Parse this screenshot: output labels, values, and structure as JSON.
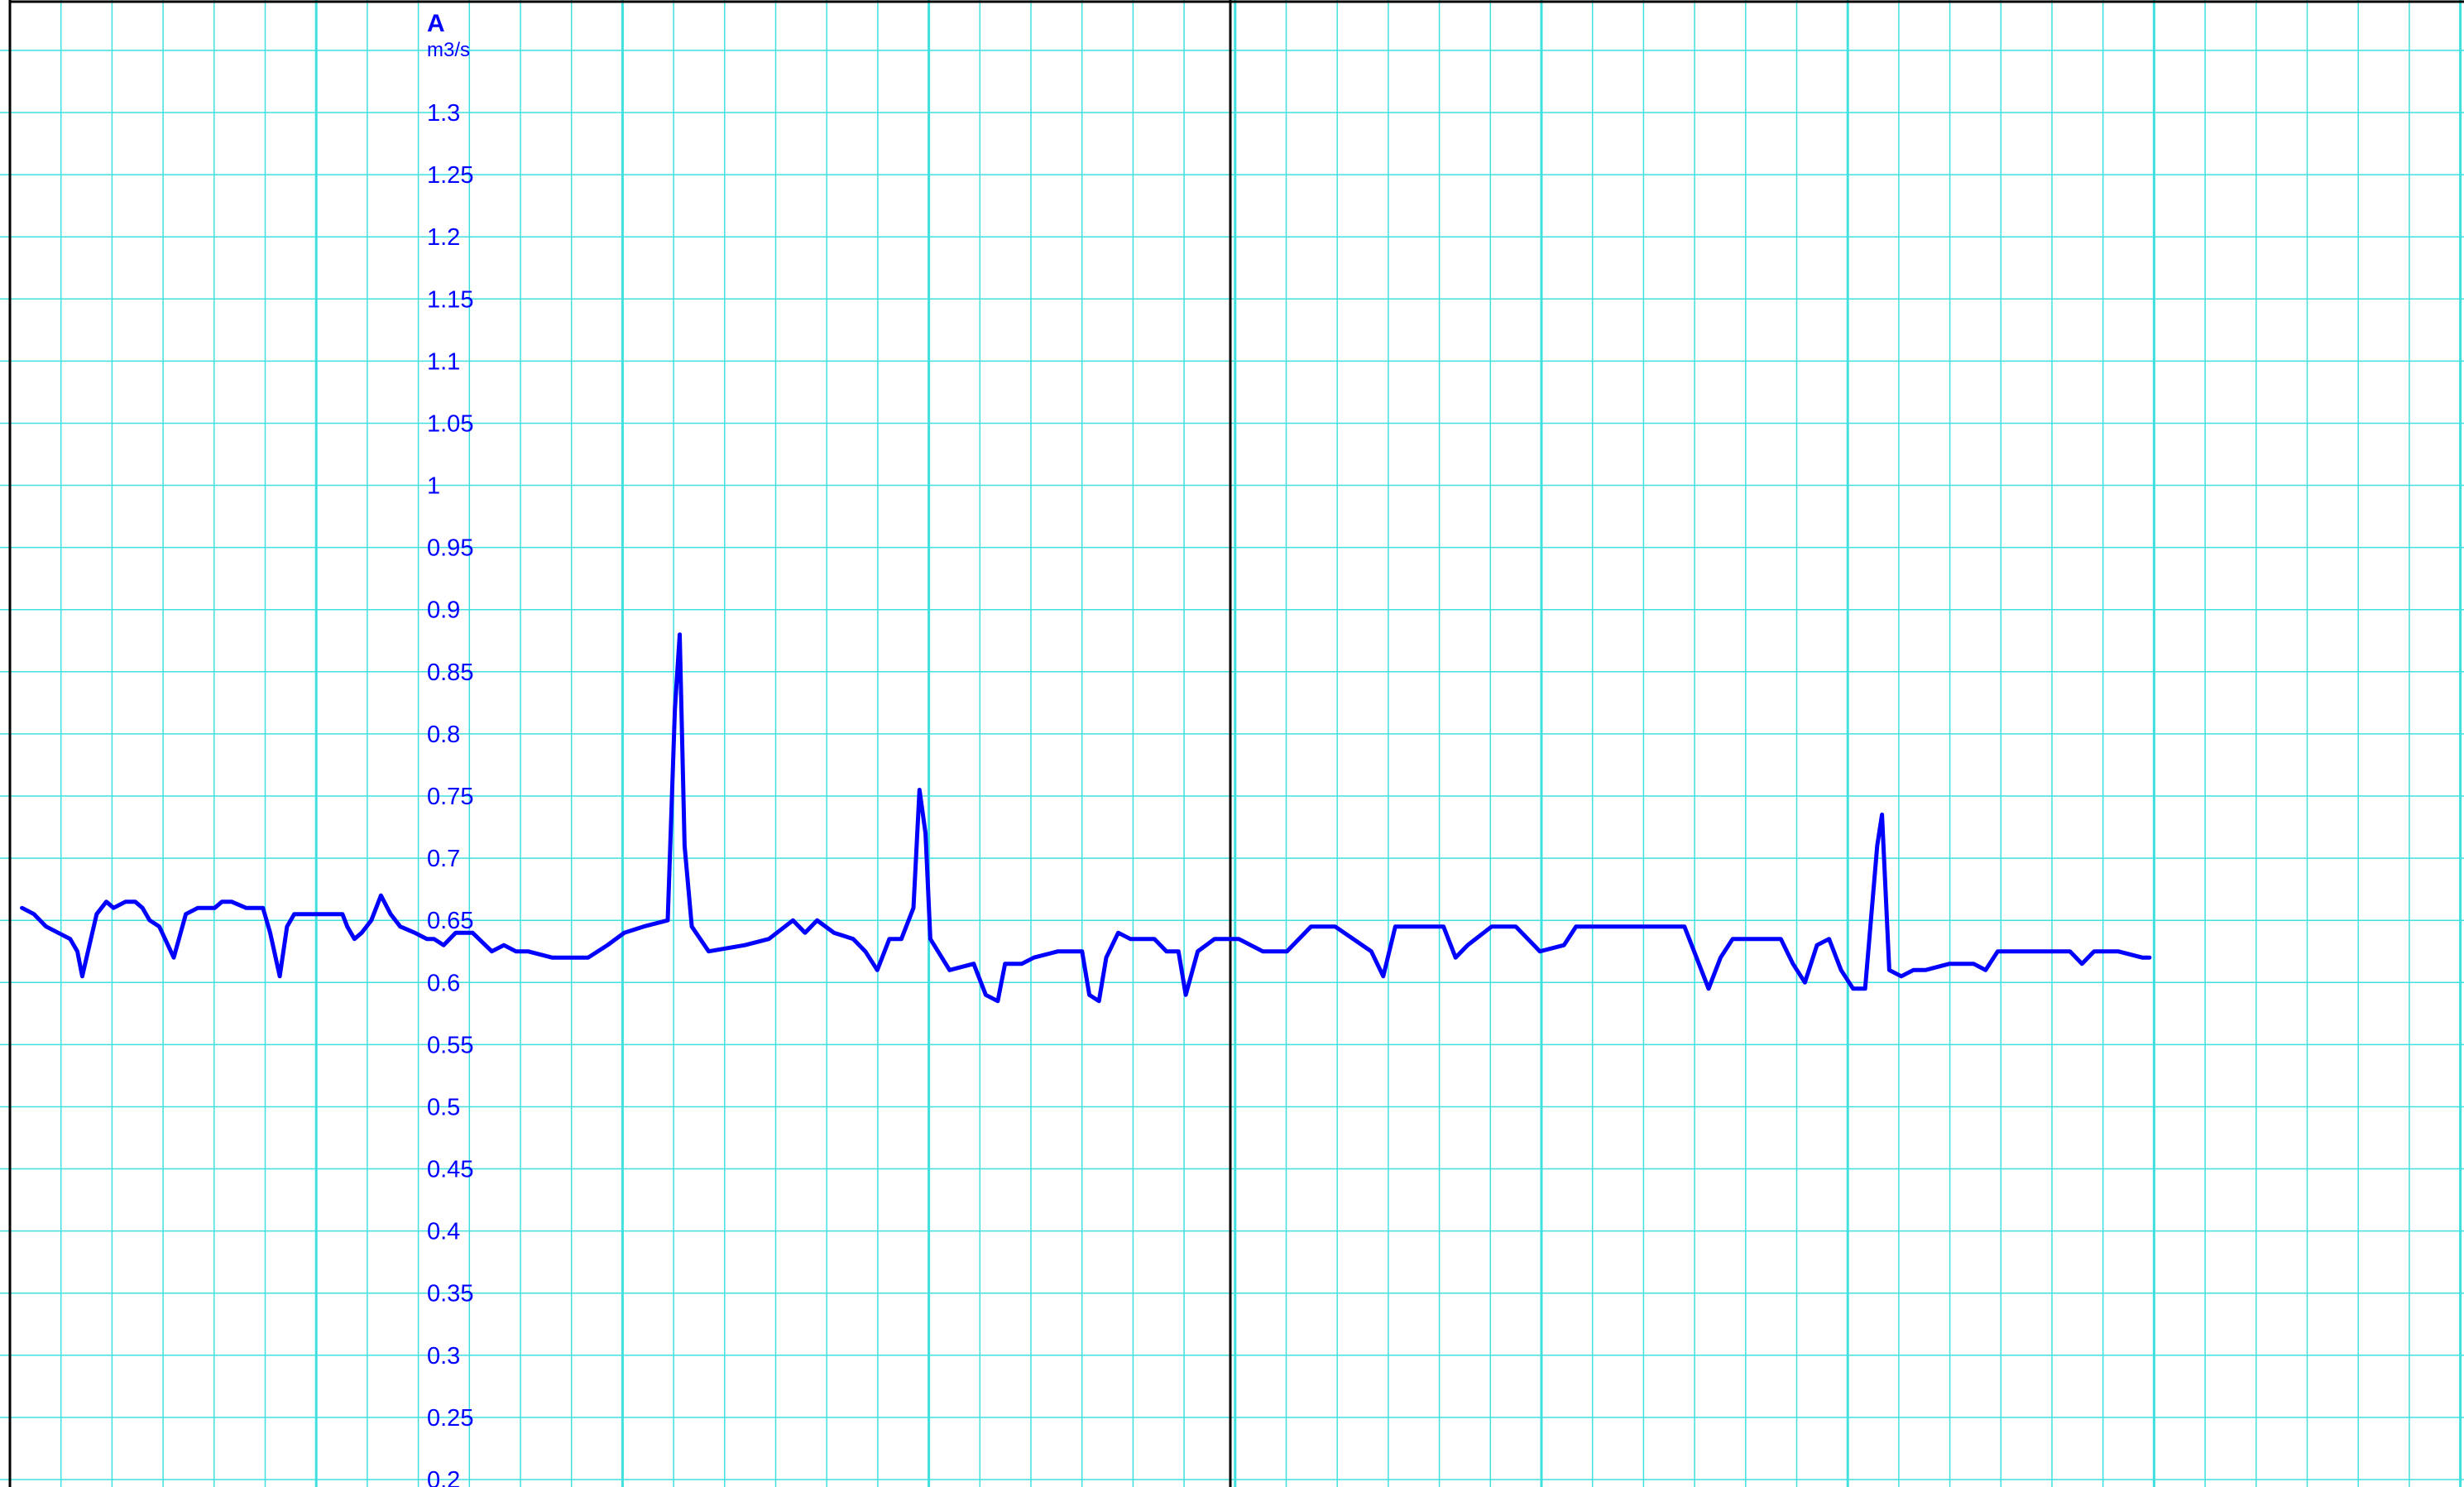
{
  "chart_data": {
    "type": "line",
    "title": "",
    "xlabel": "",
    "ylabel": "A",
    "yunit": "m3/s",
    "ylim": [
      0.2,
      1.35
    ],
    "yticks": [
      1.3,
      1.25,
      1.2,
      1.15,
      1.1,
      1.05,
      1,
      0.95,
      0.9,
      0.85,
      0.8,
      0.75,
      0.7,
      0.65,
      0.6,
      0.55,
      0.5,
      0.45,
      0.4,
      0.35,
      0.3,
      0.25,
      0.2
    ],
    "ytick_labels": [
      "1.3",
      "1.25",
      "1.2",
      "1.15",
      "1.1",
      "1.05",
      "1",
      "0.95",
      "0.9",
      "0.85",
      "0.8",
      "0.75",
      "0.7",
      "0.65",
      "0.6",
      "0.55",
      "0.5",
      "0.45",
      "0.4",
      "0.35",
      "0.3",
      "0.25",
      "0.2"
    ],
    "xlim": [
      0,
      100
    ],
    "grid": true,
    "colors": {
      "line": "#0000ff",
      "grid": "#40e0e0",
      "frame": "#000000",
      "labels": "#0000ff"
    },
    "series": [
      {
        "values": [
          [
            0.5,
            0.66
          ],
          [
            1.0,
            0.655
          ],
          [
            1.5,
            0.645
          ],
          [
            2.0,
            0.64
          ],
          [
            2.5,
            0.635
          ],
          [
            2.8,
            0.625
          ],
          [
            3.0,
            0.605
          ],
          [
            3.3,
            0.63
          ],
          [
            3.6,
            0.655
          ],
          [
            4.0,
            0.665
          ],
          [
            4.3,
            0.66
          ],
          [
            4.8,
            0.665
          ],
          [
            5.2,
            0.665
          ],
          [
            5.5,
            0.66
          ],
          [
            5.8,
            0.65
          ],
          [
            6.2,
            0.645
          ],
          [
            6.8,
            0.62
          ],
          [
            7.3,
            0.655
          ],
          [
            7.8,
            0.66
          ],
          [
            8.5,
            0.66
          ],
          [
            8.8,
            0.665
          ],
          [
            9.2,
            0.665
          ],
          [
            9.8,
            0.66
          ],
          [
            10.5,
            0.66
          ],
          [
            10.8,
            0.64
          ],
          [
            11.2,
            0.605
          ],
          [
            11.5,
            0.645
          ],
          [
            11.8,
            0.655
          ],
          [
            12.5,
            0.655
          ],
          [
            13.3,
            0.655
          ],
          [
            13.8,
            0.655
          ],
          [
            14.0,
            0.645
          ],
          [
            14.3,
            0.635
          ],
          [
            14.6,
            0.64
          ],
          [
            15.0,
            0.65
          ],
          [
            15.4,
            0.67
          ],
          [
            15.8,
            0.655
          ],
          [
            16.2,
            0.645
          ],
          [
            16.8,
            0.64
          ],
          [
            17.3,
            0.635
          ],
          [
            17.6,
            0.635
          ],
          [
            18.0,
            0.63
          ],
          [
            18.5,
            0.64
          ],
          [
            19.2,
            0.64
          ],
          [
            20.0,
            0.625
          ],
          [
            20.5,
            0.63
          ],
          [
            21.0,
            0.625
          ],
          [
            21.5,
            0.625
          ],
          [
            22.5,
            0.62
          ],
          [
            24.0,
            0.62
          ],
          [
            24.8,
            0.63
          ],
          [
            25.5,
            0.64
          ],
          [
            26.3,
            0.645
          ],
          [
            27.3,
            0.65
          ],
          [
            27.6,
            0.82
          ],
          [
            27.8,
            0.88
          ],
          [
            28.0,
            0.71
          ],
          [
            28.3,
            0.645
          ],
          [
            29.0,
            0.625
          ],
          [
            30.5,
            0.63
          ],
          [
            31.5,
            0.635
          ],
          [
            32.5,
            0.65
          ],
          [
            33.0,
            0.64
          ],
          [
            33.5,
            0.65
          ],
          [
            34.2,
            0.64
          ],
          [
            35.0,
            0.635
          ],
          [
            35.5,
            0.625
          ],
          [
            36.0,
            0.61
          ],
          [
            36.5,
            0.635
          ],
          [
            37.0,
            0.635
          ],
          [
            37.5,
            0.66
          ],
          [
            37.75,
            0.755
          ],
          [
            38.0,
            0.72
          ],
          [
            38.2,
            0.635
          ],
          [
            39.0,
            0.61
          ],
          [
            40.0,
            0.615
          ],
          [
            40.5,
            0.59
          ],
          [
            41.0,
            0.585
          ],
          [
            41.3,
            0.615
          ],
          [
            42.0,
            0.615
          ],
          [
            42.5,
            0.62
          ],
          [
            43.5,
            0.625
          ],
          [
            44.5,
            0.625
          ],
          [
            44.8,
            0.59
          ],
          [
            45.2,
            0.585
          ],
          [
            45.5,
            0.62
          ],
          [
            46.0,
            0.64
          ],
          [
            46.5,
            0.635
          ],
          [
            47.5,
            0.635
          ],
          [
            48.0,
            0.625
          ],
          [
            48.5,
            0.625
          ],
          [
            48.8,
            0.59
          ],
          [
            49.3,
            0.625
          ],
          [
            50.0,
            0.635
          ],
          [
            51.0,
            0.635
          ],
          [
            52.0,
            0.625
          ],
          [
            53.0,
            0.625
          ],
          [
            54.0,
            0.645
          ],
          [
            55.0,
            0.645
          ],
          [
            56.5,
            0.625
          ],
          [
            57.0,
            0.605
          ],
          [
            57.5,
            0.645
          ],
          [
            58.5,
            0.645
          ],
          [
            59.5,
            0.645
          ],
          [
            60.0,
            0.62
          ],
          [
            60.5,
            0.63
          ],
          [
            61.5,
            0.645
          ],
          [
            62.5,
            0.645
          ],
          [
            63.0,
            0.635
          ],
          [
            63.5,
            0.625
          ],
          [
            64.5,
            0.63
          ],
          [
            65.0,
            0.645
          ],
          [
            66.5,
            0.645
          ],
          [
            67.5,
            0.645
          ],
          [
            68.5,
            0.645
          ],
          [
            69.5,
            0.645
          ],
          [
            70.0,
            0.62
          ],
          [
            70.5,
            0.595
          ],
          [
            71.0,
            0.62
          ],
          [
            71.5,
            0.635
          ],
          [
            72.0,
            0.635
          ],
          [
            73.0,
            0.635
          ],
          [
            73.5,
            0.635
          ],
          [
            74.0,
            0.615
          ],
          [
            74.5,
            0.6
          ],
          [
            75.0,
            0.63
          ],
          [
            75.5,
            0.635
          ],
          [
            76.0,
            0.61
          ],
          [
            76.5,
            0.595
          ],
          [
            77.0,
            0.595
          ],
          [
            77.5,
            0.71
          ],
          [
            77.7,
            0.735
          ],
          [
            78.0,
            0.61
          ],
          [
            78.5,
            0.605
          ],
          [
            79.0,
            0.61
          ],
          [
            79.5,
            0.61
          ],
          [
            80.5,
            0.615
          ],
          [
            81.5,
            0.615
          ],
          [
            82.0,
            0.61
          ],
          [
            82.5,
            0.625
          ],
          [
            83.5,
            0.625
          ],
          [
            84.5,
            0.625
          ],
          [
            85.5,
            0.625
          ],
          [
            86.0,
            0.615
          ],
          [
            86.5,
            0.625
          ],
          [
            87.5,
            0.625
          ],
          [
            88.5,
            0.62
          ],
          [
            88.8,
            0.62
          ]
        ]
      }
    ]
  }
}
